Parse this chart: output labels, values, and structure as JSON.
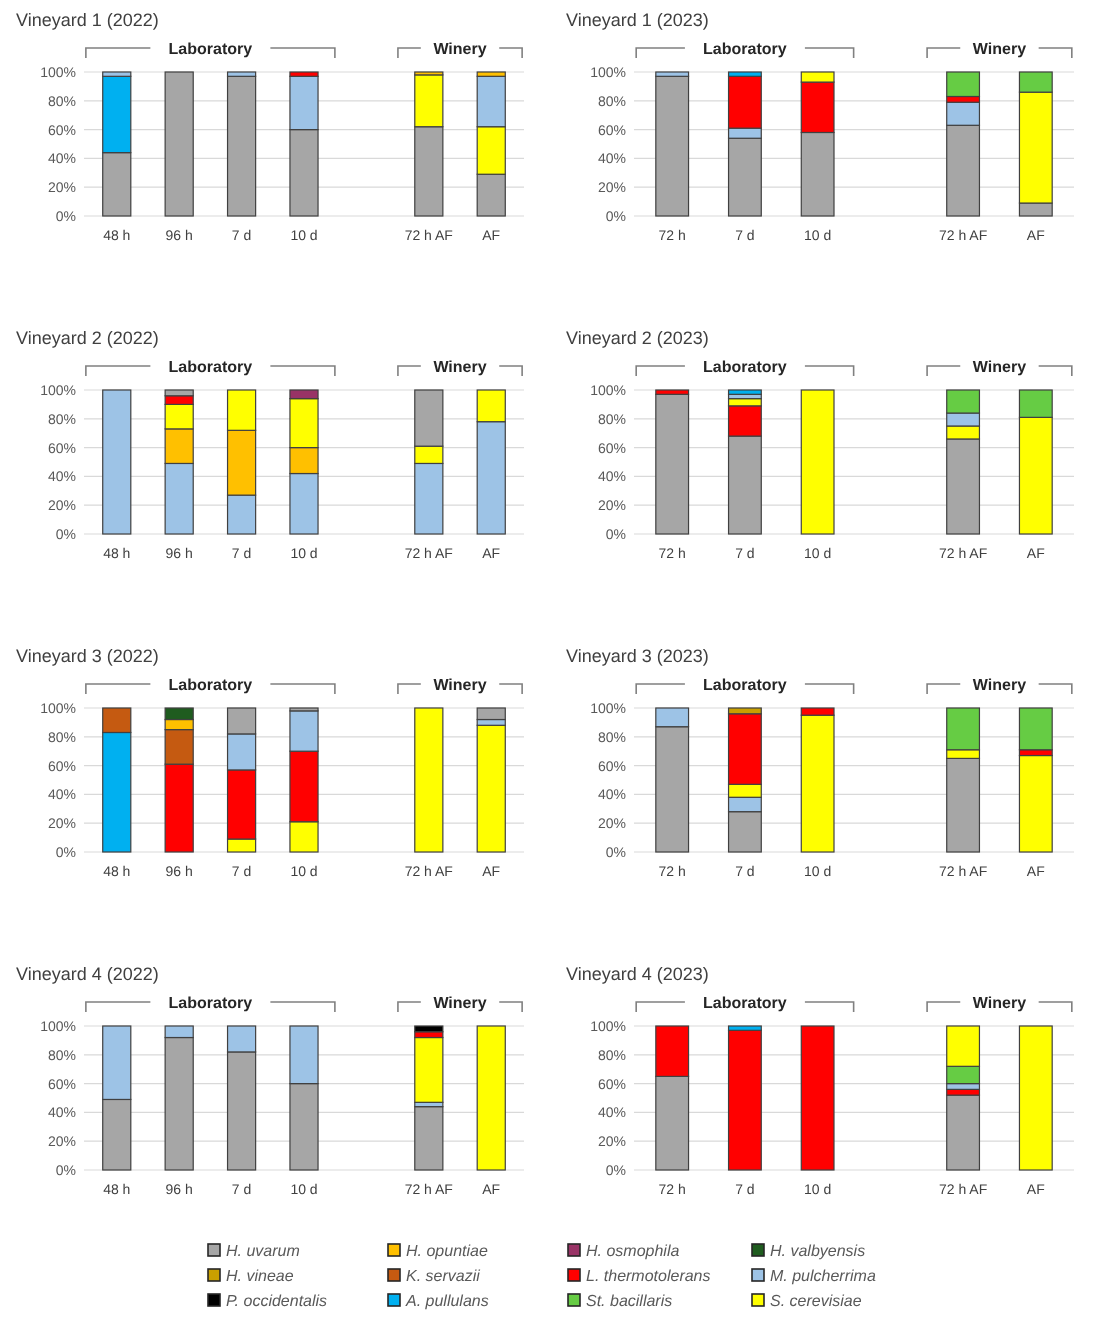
{
  "chart_data": [
    {
      "type": "bar",
      "stacked": true,
      "title": "Vineyard 1 (2022)",
      "annotations": [
        "Laboratory",
        "Winery"
      ],
      "categories": [
        "48 h",
        "96 h",
        "7 d",
        "10 d",
        null,
        "72 h AF",
        "AF"
      ],
      "ylim": [
        0,
        100
      ],
      "yticks": [
        {
          "value": 0,
          "label": "0%"
        },
        {
          "value": 20,
          "label": "20%"
        },
        {
          "value": 40,
          "label": "40%"
        },
        {
          "value": 60,
          "label": "60%"
        },
        {
          "value": 80,
          "label": "80%"
        },
        {
          "value": 100,
          "label": "100%"
        }
      ],
      "grid": "y",
      "legend": false,
      "series": [
        {
          "color": "#a6a6a6",
          "values": [
            44,
            100,
            97,
            60,
            null,
            62,
            29
          ]
        },
        {
          "color": "#00b0f0",
          "values": [
            53,
            null,
            null,
            null,
            null,
            null,
            null
          ]
        },
        {
          "color": "#ffff00",
          "values": [
            null,
            null,
            null,
            null,
            null,
            36,
            33
          ]
        },
        {
          "color": "#9dc3e6",
          "values": [
            3,
            null,
            3,
            37,
            null,
            null,
            35
          ]
        },
        {
          "color": "#ff0000",
          "values": [
            null,
            null,
            null,
            3,
            null,
            null,
            null
          ]
        },
        {
          "color": "#ffc000",
          "values": [
            null,
            null,
            null,
            null,
            null,
            2,
            3
          ]
        }
      ]
    },
    {
      "type": "bar",
      "stacked": true,
      "title": "Vineyard 1 (2023)",
      "annotations": [
        "Laboratory",
        "Winery"
      ],
      "categories": [
        "72 h",
        "7 d",
        "10 d",
        null,
        "72 h AF",
        "AF"
      ],
      "ylim": [
        0,
        100
      ],
      "yticks": [
        {
          "value": 0,
          "label": "0%"
        },
        {
          "value": 20,
          "label": "20%"
        },
        {
          "value": 40,
          "label": "40%"
        },
        {
          "value": 60,
          "label": "60%"
        },
        {
          "value": 80,
          "label": "80%"
        },
        {
          "value": 100,
          "label": "100%"
        }
      ],
      "grid": "y",
      "legend": false,
      "series": [
        {
          "color": "#a6a6a6",
          "values": [
            97,
            54,
            58,
            null,
            63,
            9
          ]
        },
        {
          "color": "#9dc3e6",
          "values": [
            3,
            7,
            null,
            null,
            16,
            null
          ]
        },
        {
          "color": "#ff0000",
          "values": [
            null,
            36,
            35,
            null,
            4,
            null
          ]
        },
        {
          "color": "#00b0f0",
          "values": [
            null,
            3,
            null,
            null,
            null,
            null
          ]
        },
        {
          "color": "#ffff00",
          "values": [
            null,
            null,
            7,
            null,
            null,
            77
          ]
        },
        {
          "color": "#66cc44",
          "values": [
            null,
            null,
            null,
            null,
            17,
            14
          ]
        }
      ]
    },
    {
      "type": "bar",
      "stacked": true,
      "title": "Vineyard 2 (2022)",
      "annotations": [
        "Laboratory",
        "Winery"
      ],
      "categories": [
        "48 h",
        "96 h",
        "7 d",
        "10 d",
        null,
        "72 h AF",
        "AF"
      ],
      "ylim": [
        0,
        100
      ],
      "yticks": [
        {
          "value": 0,
          "label": "0%"
        },
        {
          "value": 20,
          "label": "20%"
        },
        {
          "value": 40,
          "label": "40%"
        },
        {
          "value": 60,
          "label": "60%"
        },
        {
          "value": 80,
          "label": "80%"
        },
        {
          "value": 100,
          "label": "100%"
        }
      ],
      "grid": "y",
      "legend": false,
      "series": [
        {
          "color": "#9dc3e6",
          "values": [
            100,
            49,
            27,
            42,
            null,
            49,
            78
          ]
        },
        {
          "color": "#ffc000",
          "values": [
            null,
            24,
            45,
            18,
            null,
            null,
            null
          ]
        },
        {
          "color": "#ffff00",
          "values": [
            null,
            17,
            28,
            34,
            null,
            12,
            22
          ]
        },
        {
          "color": "#ff0000",
          "values": [
            null,
            6,
            null,
            null,
            null,
            null,
            null
          ]
        },
        {
          "color": "#a6a6a6",
          "values": [
            null,
            4,
            null,
            null,
            null,
            39,
            null
          ]
        },
        {
          "color": "#993366",
          "values": [
            null,
            null,
            null,
            6,
            null,
            null,
            null
          ]
        }
      ]
    },
    {
      "type": "bar",
      "stacked": true,
      "title": "Vineyard 2 (2023)",
      "annotations": [
        "Laboratory",
        "Winery"
      ],
      "categories": [
        "72 h",
        "7 d",
        "10 d",
        null,
        "72 h AF",
        "AF"
      ],
      "ylim": [
        0,
        100
      ],
      "yticks": [
        {
          "value": 0,
          "label": "0%"
        },
        {
          "value": 20,
          "label": "20%"
        },
        {
          "value": 40,
          "label": "40%"
        },
        {
          "value": 60,
          "label": "60%"
        },
        {
          "value": 80,
          "label": "80%"
        },
        {
          "value": 100,
          "label": "100%"
        }
      ],
      "grid": "y",
      "legend": false,
      "series": [
        {
          "color": "#a6a6a6",
          "values": [
            97,
            68,
            null,
            null,
            66,
            null
          ]
        },
        {
          "color": "#ff0000",
          "values": [
            3,
            21,
            null,
            null,
            null,
            null
          ]
        },
        {
          "color": "#ffff00",
          "values": [
            null,
            5,
            100,
            null,
            9,
            81
          ]
        },
        {
          "color": "#9dc3e6",
          "values": [
            null,
            3,
            null,
            null,
            9,
            null
          ]
        },
        {
          "color": "#00b0f0",
          "values": [
            null,
            3,
            null,
            null,
            null,
            null
          ]
        },
        {
          "color": "#66cc44",
          "values": [
            null,
            null,
            null,
            null,
            16,
            19
          ]
        }
      ]
    },
    {
      "type": "bar",
      "stacked": true,
      "title": "Vineyard 3 (2022)",
      "annotations": [
        "Laboratory",
        "Winery"
      ],
      "categories": [
        "48 h",
        "96 h",
        "7 d",
        "10 d",
        null,
        "72 h AF",
        "AF"
      ],
      "ylim": [
        0,
        100
      ],
      "yticks": [
        {
          "value": 0,
          "label": "0%"
        },
        {
          "value": 20,
          "label": "20%"
        },
        {
          "value": 40,
          "label": "40%"
        },
        {
          "value": 60,
          "label": "60%"
        },
        {
          "value": 80,
          "label": "80%"
        },
        {
          "value": 100,
          "label": "100%"
        }
      ],
      "grid": "y",
      "legend": false,
      "series": [
        {
          "color": "#00b0f0",
          "values": [
            83,
            null,
            null,
            null,
            null,
            null,
            null
          ]
        },
        {
          "color": "#ffff00",
          "values": [
            null,
            null,
            9,
            21,
            null,
            100,
            88
          ]
        },
        {
          "color": "#ff0000",
          "values": [
            null,
            61,
            48,
            49,
            null,
            null,
            null
          ]
        },
        {
          "color": "#c55a11",
          "values": [
            17,
            24,
            null,
            null,
            null,
            null,
            null
          ]
        },
        {
          "color": "#ffc000",
          "values": [
            null,
            7,
            null,
            null,
            null,
            null,
            null
          ]
        },
        {
          "color": "#1f5c1f",
          "values": [
            null,
            8,
            null,
            null,
            null,
            null,
            null
          ]
        },
        {
          "color": "#9dc3e6",
          "values": [
            null,
            null,
            25,
            28,
            null,
            null,
            4
          ]
        },
        {
          "color": "#a6a6a6",
          "values": [
            null,
            null,
            18,
            2,
            null,
            null,
            8
          ]
        }
      ]
    },
    {
      "type": "bar",
      "stacked": true,
      "title": "Vineyard 3 (2023)",
      "annotations": [
        "Laboratory",
        "Winery"
      ],
      "categories": [
        "72 h",
        "7 d",
        "10 d",
        null,
        "72 h AF",
        "AF"
      ],
      "ylim": [
        0,
        100
      ],
      "yticks": [
        {
          "value": 0,
          "label": "0%"
        },
        {
          "value": 20,
          "label": "20%"
        },
        {
          "value": 40,
          "label": "40%"
        },
        {
          "value": 60,
          "label": "60%"
        },
        {
          "value": 80,
          "label": "80%"
        },
        {
          "value": 100,
          "label": "100%"
        }
      ],
      "grid": "y",
      "legend": false,
      "series": [
        {
          "color": "#a6a6a6",
          "values": [
            87,
            28,
            null,
            null,
            65,
            null
          ]
        },
        {
          "color": "#9dc3e6",
          "values": [
            13,
            10,
            null,
            null,
            null,
            null
          ]
        },
        {
          "color": "#ffff00",
          "values": [
            null,
            9,
            95,
            null,
            6,
            67
          ]
        },
        {
          "color": "#ff0000",
          "values": [
            null,
            49,
            5,
            null,
            null,
            4
          ]
        },
        {
          "color": "#c9a000",
          "values": [
            null,
            4,
            null,
            null,
            null,
            null
          ]
        },
        {
          "color": "#66cc44",
          "values": [
            null,
            null,
            null,
            null,
            29,
            29
          ]
        }
      ]
    },
    {
      "type": "bar",
      "stacked": true,
      "title": "Vineyard 4 (2022)",
      "annotations": [
        "Laboratory",
        "Winery"
      ],
      "categories": [
        "48 h",
        "96 h",
        "7 d",
        "10 d",
        null,
        "72 h AF",
        "AF"
      ],
      "ylim": [
        0,
        100
      ],
      "yticks": [
        {
          "value": 0,
          "label": "0%"
        },
        {
          "value": 20,
          "label": "20%"
        },
        {
          "value": 40,
          "label": "40%"
        },
        {
          "value": 60,
          "label": "60%"
        },
        {
          "value": 80,
          "label": "80%"
        },
        {
          "value": 100,
          "label": "100%"
        }
      ],
      "grid": "y",
      "legend": false,
      "series": [
        {
          "color": "#a6a6a6",
          "values": [
            49,
            92,
            82,
            60,
            null,
            44,
            null
          ]
        },
        {
          "color": "#9dc3e6",
          "values": [
            51,
            8,
            18,
            40,
            null,
            3,
            null
          ]
        },
        {
          "color": "#ffff00",
          "values": [
            null,
            null,
            null,
            null,
            null,
            45,
            100
          ]
        },
        {
          "color": "#ff0000",
          "values": [
            null,
            null,
            null,
            null,
            null,
            4,
            null
          ]
        },
        {
          "color": "#000000",
          "values": [
            null,
            null,
            null,
            null,
            null,
            4,
            null
          ]
        }
      ]
    },
    {
      "type": "bar",
      "stacked": true,
      "title": "Vineyard 4 (2023)",
      "annotations": [
        "Laboratory",
        "Winery"
      ],
      "categories": [
        "72 h",
        "7 d",
        "10 d",
        null,
        "72 h AF",
        "AF"
      ],
      "ylim": [
        0,
        100
      ],
      "yticks": [
        {
          "value": 0,
          "label": "0%"
        },
        {
          "value": 20,
          "label": "20%"
        },
        {
          "value": 40,
          "label": "40%"
        },
        {
          "value": 60,
          "label": "60%"
        },
        {
          "value": 80,
          "label": "80%"
        },
        {
          "value": 100,
          "label": "100%"
        }
      ],
      "grid": "y",
      "legend": "bottom",
      "series": [
        {
          "name": "H. uvarum",
          "color": "#a6a6a6",
          "values": [
            65,
            null,
            null,
            null,
            52,
            null
          ]
        },
        {
          "name": "H. opuntiae",
          "color": "#ffc000",
          "values": [
            null,
            null,
            null,
            null,
            null,
            null
          ]
        },
        {
          "name": "H. osmophila",
          "color": "#993366",
          "values": [
            null,
            null,
            null,
            null,
            null,
            null
          ]
        },
        {
          "name": "H. valbyensis",
          "color": "#1f5c1f",
          "values": [
            null,
            null,
            null,
            null,
            null,
            null
          ]
        },
        {
          "name": "H. vineae",
          "color": "#c9a000",
          "values": [
            null,
            null,
            null,
            null,
            null,
            null
          ]
        },
        {
          "name": "K. servazii",
          "color": "#c55a11",
          "values": [
            null,
            null,
            null,
            null,
            null,
            null
          ]
        },
        {
          "name": "L. thermotolerans",
          "color": "#ff0000",
          "values": [
            35,
            97,
            100,
            null,
            4,
            null
          ]
        },
        {
          "name": "M. pulcherrima",
          "color": "#9dc3e6",
          "values": [
            null,
            null,
            null,
            null,
            4,
            null
          ]
        },
        {
          "name": "P. occidentalis",
          "color": "#000000",
          "values": [
            null,
            null,
            null,
            null,
            null,
            null
          ]
        },
        {
          "name": "A. pullulans",
          "color": "#00b0f0",
          "values": [
            null,
            3,
            null,
            null,
            null,
            null
          ]
        },
        {
          "name": "St. bacillaris",
          "color": "#66cc44",
          "values": [
            null,
            null,
            null,
            null,
            12,
            null
          ]
        },
        {
          "name": "S. cerevisiae",
          "color": "#ffff00",
          "values": [
            null,
            null,
            null,
            null,
            28,
            100
          ]
        }
      ]
    }
  ]
}
